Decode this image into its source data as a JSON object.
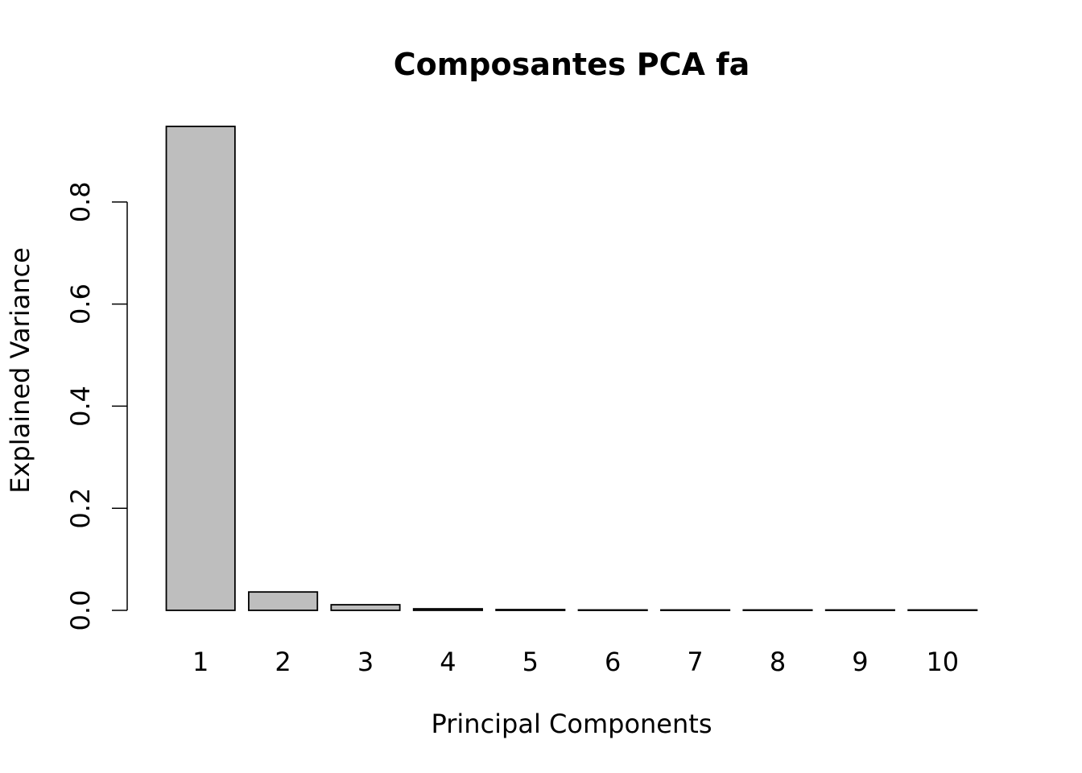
{
  "chart_data": {
    "type": "bar",
    "title": "Composantes PCA fa",
    "xlabel": "Principal Components",
    "ylabel": "Explained Variance",
    "categories": [
      "1",
      "2",
      "3",
      "4",
      "5",
      "6",
      "7",
      "8",
      "9",
      "10"
    ],
    "values": [
      0.948,
      0.036,
      0.011,
      0.003,
      0.0015,
      0.0008,
      0.0005,
      0.0003,
      0.0002,
      0.0001
    ],
    "ylim": [
      0,
      0.948
    ],
    "yticks": [
      0.0,
      0.2,
      0.4,
      0.6,
      0.8
    ],
    "ytick_labels": [
      "0.0",
      "0.2",
      "0.4",
      "0.6",
      "0.8"
    ],
    "bar_color": "#bebebe",
    "bar_edge_color": "#000000",
    "grid": false,
    "legend": "none"
  }
}
